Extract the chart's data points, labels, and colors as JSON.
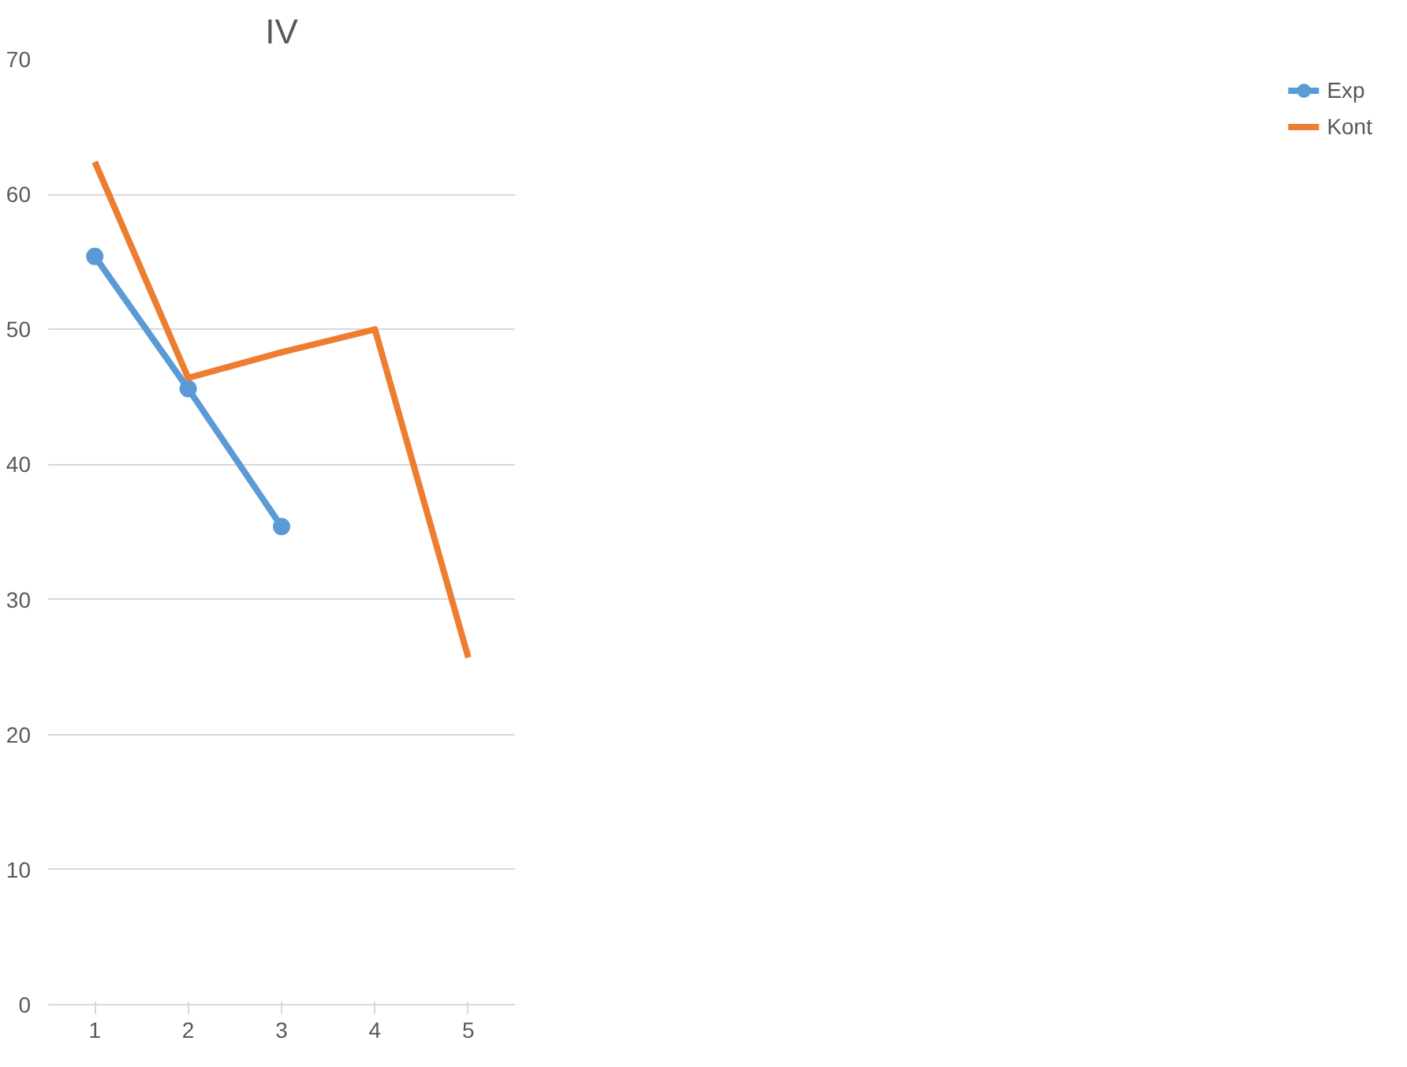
{
  "chart_data": {
    "type": "line",
    "title": "IV",
    "categories": [
      "1",
      "2",
      "3",
      "4",
      "5"
    ],
    "series": [
      {
        "name": "Exp",
        "color": "#5b9bd5",
        "values": [
          55.4,
          45.6,
          35.4,
          null,
          null
        ],
        "marker": "circle"
      },
      {
        "name": "Kont",
        "color": "#ed7d31",
        "values": [
          62.4,
          46.4,
          48.3,
          50.0,
          25.7
        ],
        "marker": "none"
      }
    ],
    "ylim": [
      0,
      70
    ],
    "yticks": [
      0,
      10,
      20,
      30,
      40,
      50,
      60,
      70
    ],
    "grid": "y",
    "legend": "right",
    "line_style": "solid"
  }
}
